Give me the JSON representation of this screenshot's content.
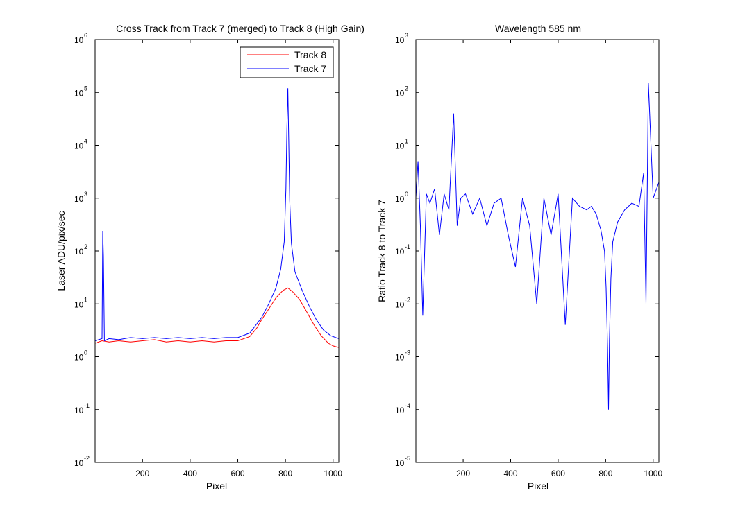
{
  "chart_data": [
    {
      "type": "line",
      "title": "Cross Track from Track 7 (merged) to Track 8 (High Gain)",
      "xlabel": "Pixel",
      "ylabel": "Laser ADU/pix/sec",
      "xlim": [
        1,
        1024
      ],
      "ylim": [
        0.01,
        1000000
      ],
      "yscale": "log",
      "grid": false,
      "legend_position": "top-right",
      "xticks": [
        200,
        400,
        600,
        800,
        1000
      ],
      "xtick_labels": [
        "200",
        "400",
        "600",
        "800",
        "1000"
      ],
      "yticks": [
        0.01,
        0.1,
        1,
        10,
        100,
        1000,
        10000,
        100000,
        1000000
      ],
      "ytick_labels": [
        {
          "base": "10",
          "exp": "-2"
        },
        {
          "base": "10",
          "exp": "-1"
        },
        {
          "base": "10",
          "exp": "0"
        },
        {
          "base": "10",
          "exp": "1"
        },
        {
          "base": "10",
          "exp": "2"
        },
        {
          "base": "10",
          "exp": "3"
        },
        {
          "base": "10",
          "exp": "4"
        },
        {
          "base": "10",
          "exp": "5"
        },
        {
          "base": "10",
          "exp": "6"
        }
      ],
      "series": [
        {
          "name": "Track 8",
          "color": "#ff0000",
          "x": [
            1,
            30,
            60,
            100,
            150,
            200,
            250,
            300,
            350,
            400,
            450,
            500,
            550,
            600,
            650,
            680,
            700,
            730,
            760,
            790,
            810,
            830,
            860,
            890,
            920,
            950,
            980,
            1000,
            1024
          ],
          "y": [
            1.8,
            2.0,
            1.9,
            2.0,
            1.9,
            2.0,
            2.1,
            1.9,
            2.0,
            1.9,
            2.0,
            1.9,
            2.0,
            2.0,
            2.4,
            3.5,
            5.0,
            8.0,
            13,
            18,
            20,
            17,
            12,
            7,
            4,
            2.5,
            1.8,
            1.6,
            1.5
          ]
        },
        {
          "name": "Track 7",
          "color": "#0000ff",
          "x": [
            1,
            30,
            33,
            36,
            40,
            60,
            100,
            150,
            200,
            250,
            300,
            350,
            400,
            450,
            500,
            550,
            600,
            650,
            700,
            730,
            760,
            780,
            795,
            802,
            806,
            810,
            814,
            818,
            825,
            840,
            870,
            900,
            930,
            960,
            990,
            1024
          ],
          "y": [
            2.0,
            2.2,
            240,
            80,
            2.0,
            2.2,
            2.1,
            2.3,
            2.2,
            2.3,
            2.2,
            2.3,
            2.2,
            2.3,
            2.2,
            2.3,
            2.3,
            2.8,
            5.5,
            10,
            20,
            45,
            150,
            1500,
            20000,
            120000,
            12000,
            900,
            140,
            40,
            18,
            9,
            5,
            3.2,
            2.5,
            2.2
          ]
        }
      ]
    },
    {
      "type": "line",
      "title": "Wavelength 585 nm",
      "xlabel": "Pixel",
      "ylabel": "Ratio Track 8 to Track 7",
      "xlim": [
        1,
        1024
      ],
      "ylim": [
        1e-05,
        1000
      ],
      "yscale": "log",
      "grid": false,
      "xticks": [
        200,
        400,
        600,
        800,
        1000
      ],
      "xtick_labels": [
        "200",
        "400",
        "600",
        "800",
        "1000"
      ],
      "yticks": [
        1e-05,
        0.0001,
        0.001,
        0.01,
        0.1,
        1,
        10,
        100,
        1000
      ],
      "ytick_labels": [
        {
          "base": "10",
          "exp": "-5"
        },
        {
          "base": "10",
          "exp": "-4"
        },
        {
          "base": "10",
          "exp": "-3"
        },
        {
          "base": "10",
          "exp": "-2"
        },
        {
          "base": "10",
          "exp": "-1"
        },
        {
          "base": "10",
          "exp": "0"
        },
        {
          "base": "10",
          "exp": "1"
        },
        {
          "base": "10",
          "exp": "2"
        },
        {
          "base": "10",
          "exp": "3"
        }
      ],
      "series": [
        {
          "color": "#0000ff",
          "x": [
            1,
            10,
            20,
            30,
            45,
            60,
            80,
            100,
            120,
            140,
            160,
            175,
            190,
            210,
            240,
            270,
            300,
            330,
            360,
            390,
            420,
            450,
            480,
            510,
            540,
            570,
            600,
            630,
            660,
            690,
            720,
            740,
            760,
            780,
            795,
            802,
            808,
            812,
            816,
            822,
            830,
            850,
            880,
            910,
            940,
            960,
            970,
            980,
            1000,
            1024
          ],
          "y": [
            1.0,
            5.0,
            0.3,
            0.006,
            1.2,
            0.8,
            1.5,
            0.2,
            1.2,
            0.6,
            40,
            0.3,
            1.0,
            1.2,
            0.5,
            1.0,
            0.3,
            0.8,
            1.0,
            0.2,
            0.05,
            1.0,
            0.3,
            0.01,
            1.0,
            0.2,
            1.2,
            0.004,
            1.0,
            0.7,
            0.6,
            0.7,
            0.5,
            0.25,
            0.1,
            0.02,
            0.0015,
            0.0001,
            0.002,
            0.03,
            0.15,
            0.35,
            0.6,
            0.8,
            0.7,
            3.0,
            0.01,
            150,
            1.0,
            2.0
          ]
        }
      ]
    }
  ]
}
